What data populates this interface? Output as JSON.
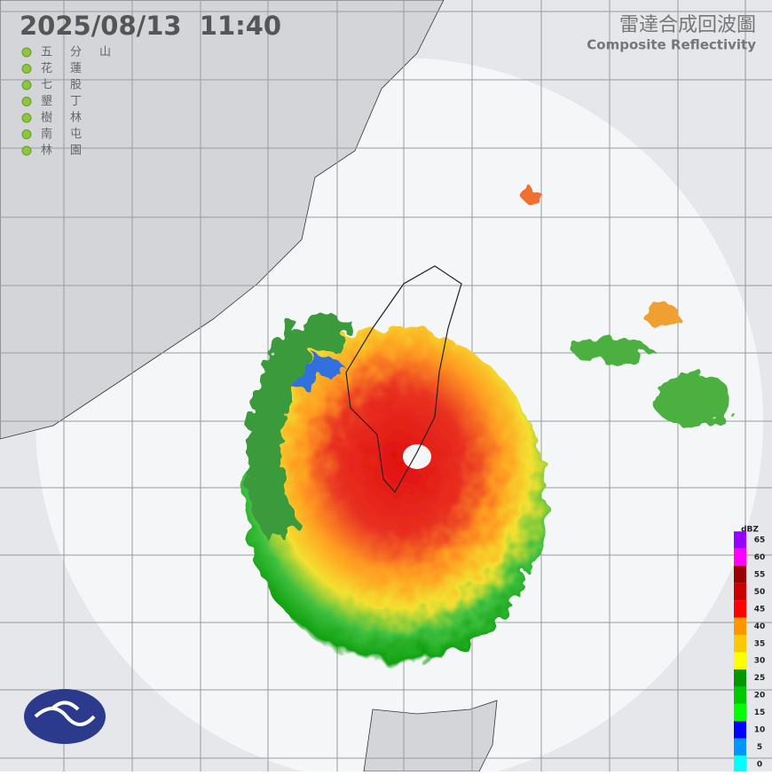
{
  "header": {
    "timestamp": "2025/08/13  11:40",
    "title": "雷達合成回波圖",
    "subtitle": "Composite Reflectivity"
  },
  "stations": [
    "五分山",
    "花蓮",
    "七股",
    "墾丁",
    "樹林",
    "南屯",
    "林園"
  ],
  "legend": {
    "unit": "dBZ",
    "ticks": [
      65,
      60,
      55,
      50,
      45,
      40,
      35,
      30,
      25,
      20,
      15,
      10,
      5,
      0
    ],
    "colors": [
      "#9600ff",
      "#ff00ff",
      "#990000",
      "#c80000",
      "#ff0000",
      "#ff9600",
      "#ffc800",
      "#ffff00",
      "#009600",
      "#00c800",
      "#00ff00",
      "#0000ff",
      "#0096ff",
      "#00ffff"
    ]
  }
}
